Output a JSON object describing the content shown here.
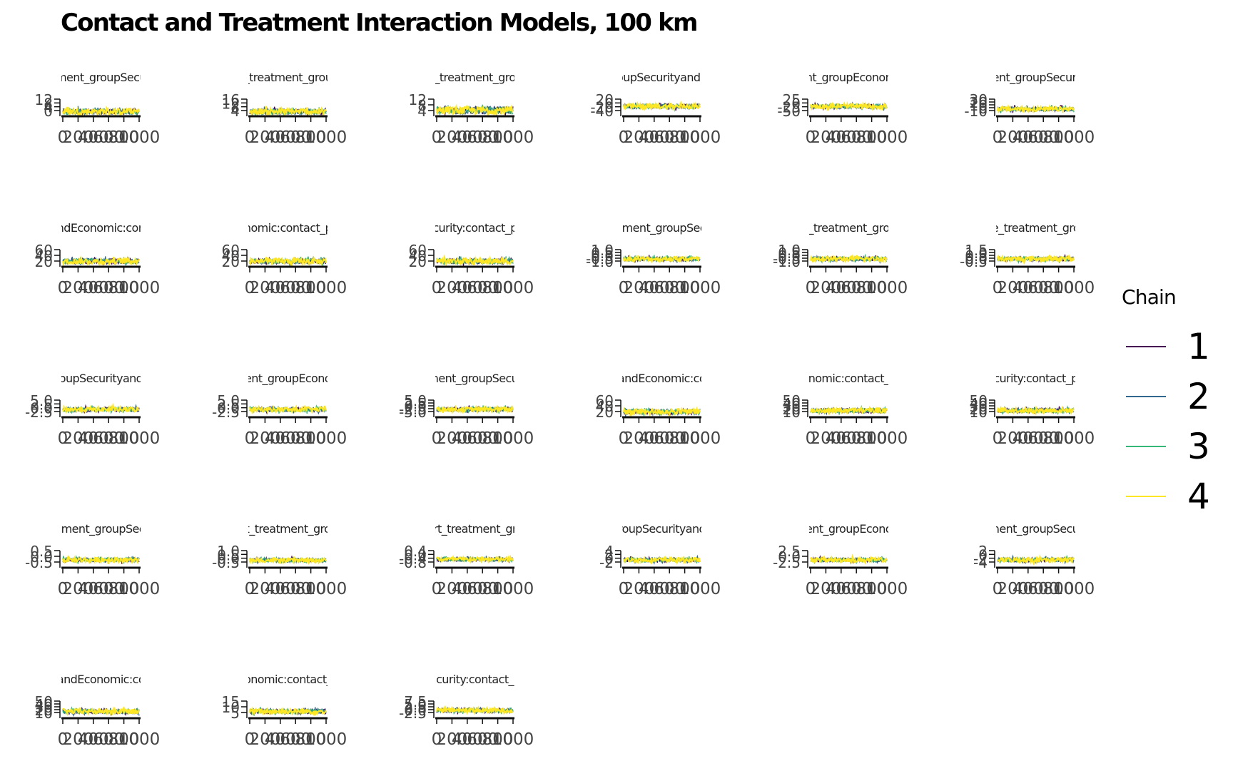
{
  "title": "Contact and Treatment Interaction Models, 100 km",
  "legend": {
    "title": "Chain",
    "items": [
      {
        "label": "1",
        "color": "#440154"
      },
      {
        "label": "2",
        "color": "#31688e"
      },
      {
        "label": "3",
        "color": "#35b779"
      },
      {
        "label": "4",
        "color": "#fde725"
      }
    ]
  },
  "chart_data": {
    "type": "line",
    "facet_layout": {
      "rows": 5,
      "cols": 6
    },
    "x_ticks": [
      "0",
      "200",
      "400",
      "600",
      "800",
      "1000"
    ],
    "series_names": [
      "1",
      "2",
      "3",
      "4"
    ],
    "panels": [
      {
        "strip": "ment_groupSecu",
        "y_ticks": [
          "12",
          "8",
          "4",
          "0"
        ],
        "ylim": [
          0,
          14
        ],
        "center": 4,
        "spread": 3
      },
      {
        "strip": "_treatment_grou",
        "y_ticks": [
          "16",
          "12",
          "8",
          "4"
        ],
        "ylim": [
          3,
          17
        ],
        "center": 7,
        "spread": 3
      },
      {
        "strip": "_treatment_gro",
        "y_ticks": [
          "12",
          "8",
          "4"
        ],
        "ylim": [
          3,
          14
        ],
        "center": 7,
        "spread": 3
      },
      {
        "strip": "oupSecurityandE",
        "y_ticks": [
          "20",
          "0",
          "-20",
          "-40"
        ],
        "ylim": [
          -45,
          25
        ],
        "center": 0,
        "spread": 12
      },
      {
        "strip": "nt_groupEconon",
        "y_ticks": [
          "25",
          "0",
          "-25",
          "-50"
        ],
        "ylim": [
          -55,
          30
        ],
        "center": 0,
        "spread": 14
      },
      {
        "strip": "ent_groupSecuri",
        "y_ticks": [
          "30",
          "20",
          "10",
          "0",
          "-10"
        ],
        "ylim": [
          -12,
          32
        ],
        "center": 8,
        "spread": 7
      },
      {
        "strip": "ndEconomic:con",
        "y_ticks": [
          "60",
          "40",
          "20"
        ],
        "ylim": [
          15,
          65
        ],
        "center": 32,
        "spread": 10
      },
      {
        "strip": "nomic:contact_p",
        "y_ticks": [
          "60",
          "40",
          "20"
        ],
        "ylim": [
          15,
          65
        ],
        "center": 32,
        "spread": 10
      },
      {
        "strip": "curity:contact_p",
        "y_ticks": [
          "60",
          "40",
          "20"
        ],
        "ylim": [
          15,
          65
        ],
        "center": 32,
        "spread": 10
      },
      {
        "strip": "tment_groupSec",
        "y_ticks": [
          "1.0",
          "0.5",
          "0.0",
          "-0.5",
          "-1.0"
        ],
        "ylim": [
          -1.1,
          1.1
        ],
        "center": 0,
        "spread": 0.35
      },
      {
        "strip": "_treatment_gro",
        "y_ticks": [
          "1.0",
          "0.5",
          "0.0",
          "-0.5",
          "-1.0"
        ],
        "ylim": [
          -1.1,
          1.1
        ],
        "center": 0,
        "spread": 0.35
      },
      {
        "strip": "e_treatment_gro",
        "y_ticks": [
          "1.5",
          "1.0",
          "0.5",
          "0.0",
          "-0.5"
        ],
        "ylim": [
          -0.6,
          1.6
        ],
        "center": 0.5,
        "spread": 0.35
      },
      {
        "strip": "oupSecurityand",
        "y_ticks": [
          "5.0",
          "2.5",
          "0.0",
          "-2.5"
        ],
        "ylim": [
          -3,
          5.5
        ],
        "center": 1.2,
        "spread": 1.4
      },
      {
        "strip": "ent_groupEcono",
        "y_ticks": [
          "5.0",
          "2.5",
          "0.0",
          "-2.5"
        ],
        "ylim": [
          -3,
          5.5
        ],
        "center": 1.2,
        "spread": 1.4
      },
      {
        "strip": "nent_groupSecu",
        "y_ticks": [
          "5.0",
          "2.5",
          "0.0",
          "-2.5",
          "-5.0"
        ],
        "ylim": [
          -5.5,
          5.5
        ],
        "center": 0,
        "spread": 1.8
      },
      {
        "strip": "andEconomic:co",
        "y_ticks": [
          "60",
          "40",
          "20"
        ],
        "ylim": [
          15,
          65
        ],
        "center": 32,
        "spread": 10
      },
      {
        "strip": "nomic:contact_",
        "y_ticks": [
          "50",
          "40",
          "30",
          "20",
          "10"
        ],
        "ylim": [
          8,
          55
        ],
        "center": 28,
        "spread": 8
      },
      {
        "strip": "curity:contact_p",
        "y_ticks": [
          "50",
          "40",
          "30",
          "20",
          "10"
        ],
        "ylim": [
          8,
          55
        ],
        "center": 28,
        "spread": 8
      },
      {
        "strip": "tment_groupSec",
        "y_ticks": [
          "0.5",
          "0.0",
          "-0.5"
        ],
        "ylim": [
          -0.6,
          0.6
        ],
        "center": 0,
        "spread": 0.2
      },
      {
        "strip": "t_treatment_gro",
        "y_ticks": [
          "1.0",
          "0.5",
          "0.0",
          "-0.5"
        ],
        "ylim": [
          -0.6,
          1.1
        ],
        "center": 0.2,
        "spread": 0.25
      },
      {
        "strip": "rt_treatment_gr",
        "y_ticks": [
          "0.4",
          "0.0",
          "-0.4",
          "-0.8"
        ],
        "ylim": [
          -0.9,
          0.5
        ],
        "center": -0.15,
        "spread": 0.2
      },
      {
        "strip": "roupSecurityand",
        "y_ticks": [
          "4",
          "2",
          "0",
          "-2"
        ],
        "ylim": [
          -2.5,
          4.5
        ],
        "center": 1,
        "spread": 1.1
      },
      {
        "strip": "ent_groupEcono",
        "y_ticks": [
          "2.5",
          "0.0",
          "-2.5"
        ],
        "ylim": [
          -3,
          3
        ],
        "center": 0,
        "spread": 0.9
      },
      {
        "strip": "nent_groupSecu",
        "y_ticks": [
          "2",
          "0",
          "-2",
          "-4"
        ],
        "ylim": [
          -4.5,
          2.5
        ],
        "center": -1,
        "spread": 1.1
      },
      {
        "strip": "andEconomic:co",
        "y_ticks": [
          "50",
          "40",
          "30",
          "20",
          "10"
        ],
        "ylim": [
          8,
          55
        ],
        "center": 28,
        "spread": 8
      },
      {
        "strip": "onomic:contact_",
        "y_ticks": [
          "15",
          "10",
          "5"
        ],
        "ylim": [
          3,
          17
        ],
        "center": 9,
        "spread": 2.5
      },
      {
        "strip": "curity:contact_",
        "y_ticks": [
          "7.5",
          "5.0",
          "2.5",
          "0.0",
          "-2.5"
        ],
        "ylim": [
          -3,
          8
        ],
        "center": 2.5,
        "spread": 1.8
      }
    ]
  }
}
